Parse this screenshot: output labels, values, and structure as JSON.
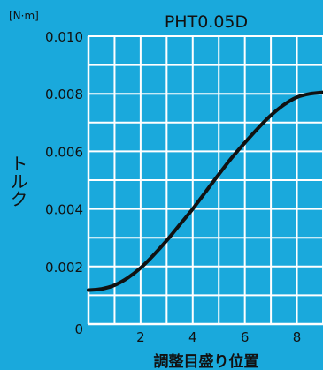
{
  "chart_data": {
    "type": "line",
    "title": "PHT0.05D",
    "unit": "[N·m]",
    "xlabel": "調整目盛り位置",
    "ylabel": "トルク",
    "xlim": [
      0,
      9
    ],
    "ylim": [
      0,
      0.01
    ],
    "x_ticks": [
      2,
      4,
      6,
      8
    ],
    "x_tick_labels": [
      "2",
      "4",
      "6",
      "8"
    ],
    "y_ticks": [
      0,
      0.002,
      0.004,
      0.006,
      0.008,
      0.01
    ],
    "y_tick_labels": [
      "0",
      "0.002",
      "0.004",
      "0.006",
      "0.008",
      "0.010"
    ],
    "grid": true,
    "colors": {
      "background": "#1aa9dc",
      "grid": "#ffffff",
      "line": "#111111"
    },
    "series": [
      {
        "x": [
          0,
          0.5,
          1,
          1.5,
          2,
          2.5,
          3,
          3.5,
          4,
          4.5,
          5,
          5.5,
          6,
          6.5,
          7,
          7.5,
          8,
          8.5,
          9
        ],
        "y": [
          0.00118,
          0.00122,
          0.00135,
          0.0016,
          0.00195,
          0.0024,
          0.0029,
          0.00345,
          0.004,
          0.0046,
          0.0052,
          0.00578,
          0.0063,
          0.0068,
          0.00725,
          0.00762,
          0.00788,
          0.008,
          0.00805
        ]
      }
    ]
  }
}
